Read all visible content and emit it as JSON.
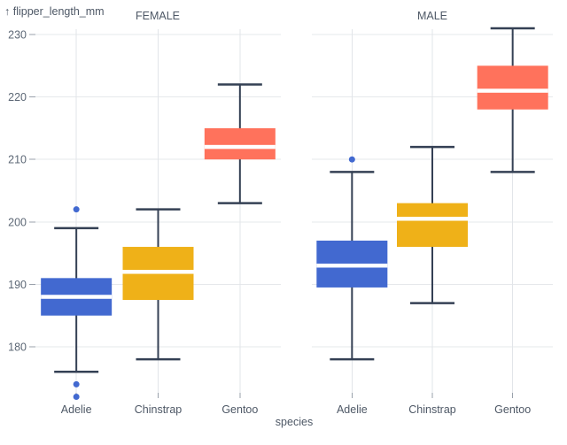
{
  "chart_data": {
    "type": "boxplot",
    "title": "",
    "y_axis": {
      "label": "↑ flipper_length_mm",
      "ticks": [
        180,
        190,
        200,
        210,
        220,
        230
      ],
      "ylim": [
        171.5,
        232
      ]
    },
    "x_axis": {
      "label": "species",
      "categories": [
        "Adelie",
        "Chinstrap",
        "Gentoo"
      ]
    },
    "colors": {
      "Adelie": "#4269d0",
      "Chinstrap": "#efb118",
      "Gentoo": "#ff725c",
      "stroke": "#344054",
      "median": "#ffffff",
      "grid_h": "#e6e8eb",
      "grid_v": "#e2e5e9",
      "tick": "#99a1ab",
      "tick_label": "#5d6876",
      "title_text": "#4e5866"
    },
    "grid": true,
    "legend": "none",
    "facets": [
      {
        "label": "FEMALE",
        "boxes": [
          {
            "species": "Adelie",
            "whisker_low": 176,
            "q1": 185,
            "median": 188,
            "q3": 191,
            "whisker_high": 199,
            "outliers": [
              202,
              174,
              172
            ]
          },
          {
            "species": "Chinstrap",
            "whisker_low": 178,
            "q1": 187.5,
            "median": 192,
            "q3": 196,
            "whisker_high": 202,
            "outliers": []
          },
          {
            "species": "Gentoo",
            "whisker_low": 203,
            "q1": 210,
            "median": 212,
            "q3": 215,
            "whisker_high": 222,
            "outliers": []
          }
        ]
      },
      {
        "label": "MALE",
        "boxes": [
          {
            "species": "Adelie",
            "whisker_low": 178,
            "q1": 189.5,
            "median": 193,
            "q3": 197,
            "whisker_high": 208,
            "outliers": [
              210
            ]
          },
          {
            "species": "Chinstrap",
            "whisker_low": 187,
            "q1": 196,
            "median": 200.5,
            "q3": 203,
            "whisker_high": 212,
            "outliers": []
          },
          {
            "species": "Gentoo",
            "whisker_low": 208,
            "q1": 218,
            "median": 221,
            "q3": 225,
            "whisker_high": 231,
            "outliers": []
          }
        ]
      }
    ]
  }
}
